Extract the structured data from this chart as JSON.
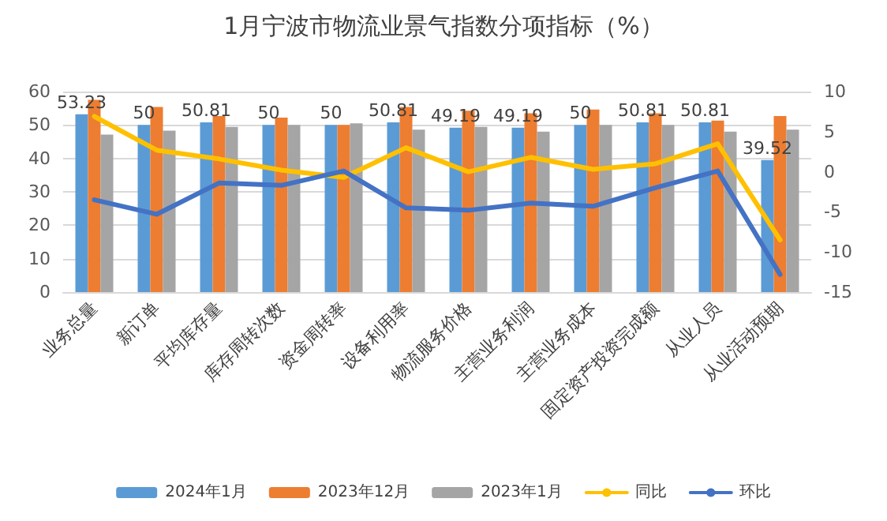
{
  "chart_data": {
    "type": "bar",
    "title": "1月宁波市物流业景气指数分项指标（%）",
    "categories": [
      "业务总量",
      "新订单",
      "平均库存量",
      "库存周转次数",
      "资金周转率",
      "设备利用率",
      "物流服务价格",
      "主营业务利润",
      "主营业务成本",
      "固定资产投资完成额",
      "从业人员",
      "从业活动预期"
    ],
    "series": [
      {
        "name": "2024年1月",
        "color": "#5b9bd5",
        "values": [
          53.23,
          50,
          50.81,
          50,
          50,
          50.81,
          49.19,
          49.19,
          50,
          50.81,
          50.81,
          39.52
        ],
        "value_labels": [
          "53.23",
          "50",
          "50.81",
          "50",
          "50",
          "50.81",
          "49.19",
          "49.19",
          "50",
          "50.81",
          "50.81",
          "39.52"
        ]
      },
      {
        "name": "2023年12月",
        "color": "#ed7d31",
        "values": [
          57.5,
          55.4,
          52.7,
          52.2,
          50,
          55.4,
          54.3,
          53.5,
          54.6,
          53.5,
          51.3,
          52.7
        ]
      },
      {
        "name": "2023年1月",
        "color": "#a5a5a5",
        "values": [
          47.1,
          48.3,
          49.4,
          50,
          50.5,
          48.6,
          49.4,
          48,
          50,
          50,
          48,
          48.6
        ]
      },
      {
        "name": "同比",
        "type": "line",
        "axis": "y2",
        "color": "#ffc000",
        "values": [
          6.9,
          2.7,
          1.6,
          0.2,
          -0.7,
          3,
          0,
          1.8,
          0.3,
          1,
          3.5,
          -8.5
        ]
      },
      {
        "name": "环比",
        "type": "line",
        "axis": "y2",
        "color": "#4472c4",
        "values": [
          -3.5,
          -5.3,
          -1.4,
          -1.7,
          0.1,
          -4.5,
          -4.8,
          -3.9,
          -4.3,
          -2,
          0.1,
          -12.8
        ]
      }
    ],
    "ylim": [
      0,
      60
    ],
    "yticks": [
      0,
      10,
      20,
      30,
      40,
      50,
      60
    ],
    "y2lim": [
      -15,
      10
    ],
    "y2ticks": [
      -15,
      -10,
      -5,
      0,
      5,
      10
    ],
    "grid": "y",
    "legend": "bottom",
    "marker": "none",
    "line_style": "solid"
  }
}
